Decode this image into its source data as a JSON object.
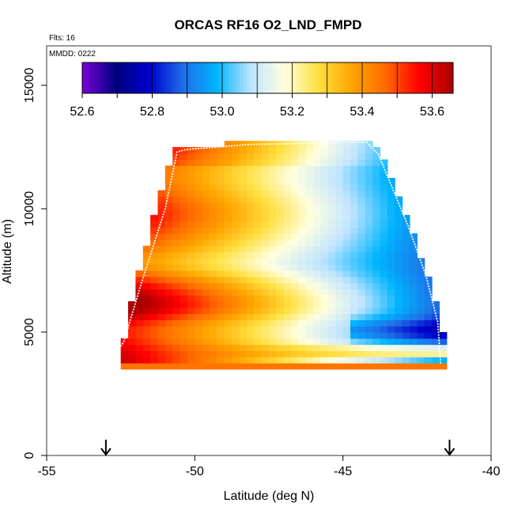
{
  "chart_data": {
    "type": "heatmap",
    "title": "ORCAS RF16 O2_LND_FMPD",
    "flights_label": "Flts: 16",
    "date_label": "MMDD: 0222",
    "xlabel": "Latitude (deg N)",
    "ylabel": "Altitude (m)",
    "xlim": [
      -55,
      -40
    ],
    "ylim": [
      0,
      16600
    ],
    "x_ticks": [
      -55,
      -50,
      -45,
      -40
    ],
    "x_tick_labels": [
      "-55",
      "-50",
      "-45",
      "-40"
    ],
    "y_ticks": [
      0,
      5000,
      10000,
      15000
    ],
    "y_tick_labels": [
      "0",
      "5000",
      "10000",
      "15000"
    ],
    "colorbar": {
      "min": 52.6,
      "max": 53.66,
      "ticks": [
        52.6,
        52.8,
        53.0,
        53.2,
        53.4,
        53.6
      ],
      "tick_labels": [
        "52.6",
        "52.8",
        "53.0",
        "53.2",
        "53.4",
        "53.6"
      ],
      "colors": [
        "#7a00d6",
        "#000080",
        "#0000cd",
        "#1e6fe8",
        "#00b4ff",
        "#bfe4ff",
        "#ffffe0",
        "#ffe040",
        "#ffa500",
        "#ff6a00",
        "#ff0000",
        "#aa0000"
      ]
    },
    "grid": {
      "lat_start": -52.5,
      "lat_end": -41.5,
      "lat_step": 0.25,
      "alt_start": 3500,
      "alt_end": 12700,
      "alt_step": 250,
      "lower_boundary": [
        [
          -52.5,
          3500
        ],
        [
          -41.5,
          3500
        ]
      ],
      "upper_boundary": [
        [
          -52.5,
          3500
        ],
        [
          -52.4,
          4700
        ],
        [
          -52.0,
          6900
        ],
        [
          -51.4,
          9600
        ],
        [
          -50.7,
          12400
        ],
        [
          -48.3,
          12700
        ],
        [
          -44.0,
          12700
        ],
        [
          -43.6,
          12000
        ],
        [
          -42.5,
          8500
        ],
        [
          -41.7,
          5700
        ],
        [
          -41.5,
          3600
        ]
      ]
    },
    "flight_track": [
      [
        -53.0,
        3600
      ],
      [
        -52.4,
        4600
      ],
      [
        -51.8,
        7000
      ],
      [
        -51.0,
        10000
      ],
      [
        -50.6,
        12300
      ],
      [
        -50.3,
        12400
      ],
      [
        -48.2,
        12600
      ],
      [
        -44.2,
        12700
      ],
      [
        -43.8,
        12200
      ],
      [
        -42.8,
        9300
      ],
      [
        -42.2,
        7300
      ],
      [
        -41.8,
        5400
      ],
      [
        -41.7,
        3700
      ]
    ],
    "arrows": [
      -53.0,
      -41.4
    ]
  }
}
